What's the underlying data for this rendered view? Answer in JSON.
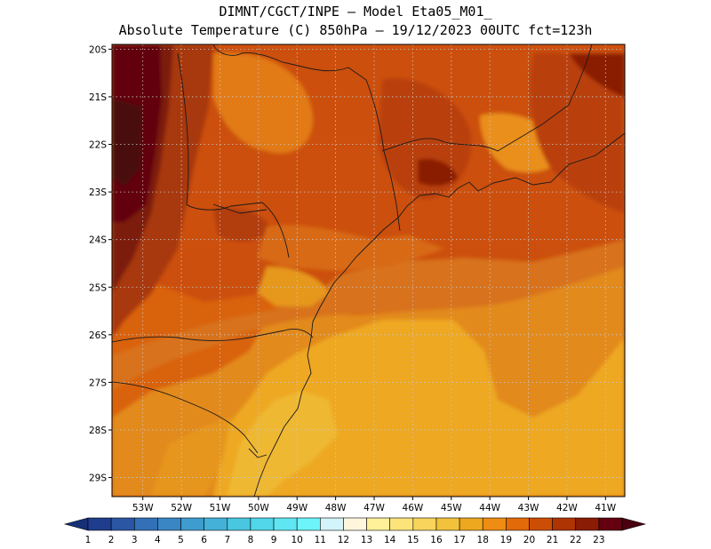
{
  "header": {
    "line1": "DIMNT/CGCT/INPE –  Model Eta05_M01_",
    "line2": "Absolute Temperature (C) 850hPa –  19/12/2023 00UTC fct=123h"
  },
  "map": {
    "lat_labels": [
      "20S",
      "21S",
      "22S",
      "23S",
      "24S",
      "25S",
      "26S",
      "27S",
      "28S",
      "29S"
    ],
    "lon_labels": [
      "53W",
      "52W",
      "51W",
      "50W",
      "49W",
      "48W",
      "47W",
      "46W",
      "45W",
      "44W",
      "43W",
      "42W",
      "41W"
    ],
    "lat_range": [
      -29.4,
      -19.9
    ],
    "lon_range": [
      -53.8,
      -40.5
    ],
    "grid": true
  },
  "colorbar": {
    "labels": [
      "1",
      "2",
      "3",
      "4",
      "5",
      "6",
      "7",
      "8",
      "9",
      "10",
      "11",
      "12",
      "13",
      "14",
      "15",
      "16",
      "17",
      "18",
      "19",
      "20",
      "21",
      "22",
      "23"
    ],
    "colors": [
      "#1f3d8c",
      "#2a56a3",
      "#3370b8",
      "#3a86c4",
      "#3f9ccf",
      "#44b2d8",
      "#49c6e0",
      "#52d6ea",
      "#5fe6f2",
      "#6cf4fa",
      "#d2f4fa",
      "#fff6dc",
      "#fff09a",
      "#fde47a",
      "#f8d45c",
      "#f2c23c",
      "#eea820",
      "#ee8c14",
      "#e26a08",
      "#cc4e06",
      "#ae3404",
      "#8a1c06",
      "#64000f"
    ],
    "end_left": "#163078",
    "end_right": "#4a0010"
  }
}
